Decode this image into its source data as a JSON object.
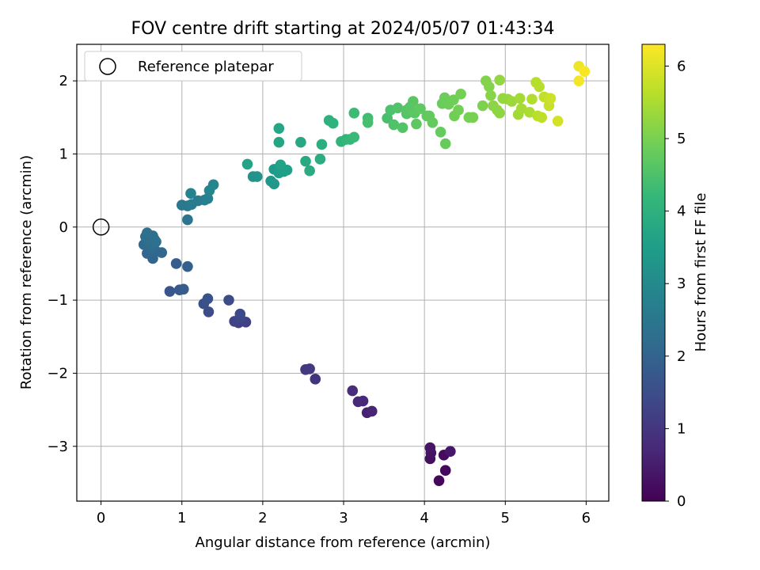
{
  "chart_data": {
    "type": "scatter",
    "title": "FOV centre drift starting at 2024/05/07 01:43:34",
    "xlabel": "Angular distance from reference (arcmin)",
    "ylabel": "Rotation from reference (arcmin)",
    "colorbar_label": "Hours from first FF file",
    "colormap": "viridis",
    "xlim": [
      -0.3,
      6.28
    ],
    "ylim": [
      -3.75,
      2.5
    ],
    "clim": [
      0,
      6.3
    ],
    "x_ticks": [
      "0",
      "1",
      "2",
      "3",
      "4",
      "5",
      "6"
    ],
    "y_ticks": [
      "−3",
      "−2",
      "−1",
      "0",
      "1",
      "2"
    ],
    "colorbar_ticks": [
      "0",
      "1",
      "2",
      "3",
      "4",
      "5",
      "6"
    ],
    "grid": true,
    "legend": {
      "placement": "top-left",
      "entries": [
        "Reference platepar"
      ]
    },
    "reference_point": {
      "x": 0,
      "y": 0,
      "label": "Reference platepar"
    },
    "points": [
      {
        "x": 4.18,
        "y": -3.47,
        "h": 0.1
      },
      {
        "x": 4.26,
        "y": -3.33,
        "h": 0.15
      },
      {
        "x": 4.24,
        "y": -3.12,
        "h": 0.2
      },
      {
        "x": 4.07,
        "y": -3.17,
        "h": 0.25
      },
      {
        "x": 4.08,
        "y": -3.09,
        "h": 0.3
      },
      {
        "x": 4.07,
        "y": -3.02,
        "h": 0.35
      },
      {
        "x": 4.32,
        "y": -3.07,
        "h": 0.4
      },
      {
        "x": 3.29,
        "y": -2.54,
        "h": 0.6
      },
      {
        "x": 3.35,
        "y": -2.52,
        "h": 0.65
      },
      {
        "x": 3.18,
        "y": -2.39,
        "h": 0.7
      },
      {
        "x": 3.24,
        "y": -2.38,
        "h": 0.75
      },
      {
        "x": 3.11,
        "y": -2.24,
        "h": 0.8
      },
      {
        "x": 2.65,
        "y": -2.08,
        "h": 0.95
      },
      {
        "x": 2.53,
        "y": -1.95,
        "h": 1.0
      },
      {
        "x": 2.58,
        "y": -1.94,
        "h": 1.05
      },
      {
        "x": 1.7,
        "y": -1.31,
        "h": 1.2
      },
      {
        "x": 1.79,
        "y": -1.3,
        "h": 1.25
      },
      {
        "x": 1.65,
        "y": -1.29,
        "h": 1.3
      },
      {
        "x": 1.72,
        "y": -1.24,
        "h": 1.35
      },
      {
        "x": 1.72,
        "y": -1.19,
        "h": 1.4
      },
      {
        "x": 1.58,
        "y": -1.0,
        "h": 1.45
      },
      {
        "x": 1.33,
        "y": -1.16,
        "h": 1.5
      },
      {
        "x": 1.27,
        "y": -1.05,
        "h": 1.55
      },
      {
        "x": 1.32,
        "y": -0.98,
        "h": 1.6
      },
      {
        "x": 0.85,
        "y": -0.88,
        "h": 1.7
      },
      {
        "x": 0.97,
        "y": -0.86,
        "h": 1.75
      },
      {
        "x": 1.02,
        "y": -0.85,
        "h": 1.8
      },
      {
        "x": 0.93,
        "y": -0.5,
        "h": 1.85
      },
      {
        "x": 1.07,
        "y": -0.54,
        "h": 1.9
      },
      {
        "x": 0.64,
        "y": -0.43,
        "h": 2.0
      },
      {
        "x": 0.57,
        "y": -0.36,
        "h": 2.05
      },
      {
        "x": 0.75,
        "y": -0.35,
        "h": 2.1
      },
      {
        "x": 0.67,
        "y": -0.32,
        "h": 2.12
      },
      {
        "x": 0.61,
        "y": -0.3,
        "h": 2.15
      },
      {
        "x": 0.53,
        "y": -0.24,
        "h": 2.18
      },
      {
        "x": 0.63,
        "y": -0.26,
        "h": 2.2
      },
      {
        "x": 0.66,
        "y": -0.17,
        "h": 2.22
      },
      {
        "x": 0.59,
        "y": -0.18,
        "h": 2.25
      },
      {
        "x": 0.55,
        "y": -0.13,
        "h": 2.28
      },
      {
        "x": 0.64,
        "y": -0.12,
        "h": 2.3
      },
      {
        "x": 0.57,
        "y": -0.08,
        "h": 2.32
      },
      {
        "x": 0.68,
        "y": -0.2,
        "h": 2.34
      },
      {
        "x": 1.07,
        "y": 0.1,
        "h": 2.45
      },
      {
        "x": 1.0,
        "y": 0.3,
        "h": 2.5
      },
      {
        "x": 1.07,
        "y": 0.29,
        "h": 2.55
      },
      {
        "x": 1.12,
        "y": 0.31,
        "h": 2.6
      },
      {
        "x": 1.2,
        "y": 0.36,
        "h": 2.65
      },
      {
        "x": 1.28,
        "y": 0.37,
        "h": 2.7
      },
      {
        "x": 1.32,
        "y": 0.39,
        "h": 2.75
      },
      {
        "x": 1.11,
        "y": 0.46,
        "h": 2.8
      },
      {
        "x": 1.34,
        "y": 0.5,
        "h": 2.85
      },
      {
        "x": 1.39,
        "y": 0.58,
        "h": 2.9
      },
      {
        "x": 1.88,
        "y": 0.69,
        "h": 3.2
      },
      {
        "x": 1.93,
        "y": 0.69,
        "h": 3.25
      },
      {
        "x": 2.1,
        "y": 0.63,
        "h": 3.3
      },
      {
        "x": 2.14,
        "y": 0.59,
        "h": 3.35
      },
      {
        "x": 2.14,
        "y": 0.79,
        "h": 3.4
      },
      {
        "x": 2.2,
        "y": 0.74,
        "h": 3.45
      },
      {
        "x": 2.26,
        "y": 0.76,
        "h": 3.5
      },
      {
        "x": 2.3,
        "y": 0.78,
        "h": 3.55
      },
      {
        "x": 2.22,
        "y": 0.85,
        "h": 3.6
      },
      {
        "x": 1.81,
        "y": 0.86,
        "h": 3.65
      },
      {
        "x": 2.2,
        "y": 1.16,
        "h": 3.7
      },
      {
        "x": 2.2,
        "y": 1.35,
        "h": 3.72
      },
      {
        "x": 2.47,
        "y": 1.16,
        "h": 3.75
      },
      {
        "x": 2.53,
        "y": 0.9,
        "h": 3.8
      },
      {
        "x": 2.58,
        "y": 0.77,
        "h": 3.85
      },
      {
        "x": 2.71,
        "y": 0.93,
        "h": 3.9
      },
      {
        "x": 2.73,
        "y": 1.13,
        "h": 3.95
      },
      {
        "x": 2.82,
        "y": 1.46,
        "h": 4.0
      },
      {
        "x": 2.87,
        "y": 1.42,
        "h": 4.05
      },
      {
        "x": 2.97,
        "y": 1.17,
        "h": 4.1
      },
      {
        "x": 3.03,
        "y": 1.2,
        "h": 4.15
      },
      {
        "x": 3.08,
        "y": 1.2,
        "h": 4.2
      },
      {
        "x": 3.13,
        "y": 1.23,
        "h": 4.25
      },
      {
        "x": 3.13,
        "y": 1.56,
        "h": 4.3
      },
      {
        "x": 3.3,
        "y": 1.49,
        "h": 4.35
      },
      {
        "x": 3.3,
        "y": 1.43,
        "h": 4.4
      },
      {
        "x": 3.54,
        "y": 1.49,
        "h": 4.45
      },
      {
        "x": 3.58,
        "y": 1.6,
        "h": 4.5
      },
      {
        "x": 3.62,
        "y": 1.4,
        "h": 4.52
      },
      {
        "x": 3.67,
        "y": 1.63,
        "h": 4.55
      },
      {
        "x": 3.73,
        "y": 1.36,
        "h": 4.57
      },
      {
        "x": 3.78,
        "y": 1.55,
        "h": 4.6
      },
      {
        "x": 3.78,
        "y": 1.6,
        "h": 4.62
      },
      {
        "x": 3.82,
        "y": 1.64,
        "h": 4.64
      },
      {
        "x": 3.86,
        "y": 1.72,
        "h": 4.66
      },
      {
        "x": 3.88,
        "y": 1.56,
        "h": 4.68
      },
      {
        "x": 3.9,
        "y": 1.41,
        "h": 4.7
      },
      {
        "x": 3.95,
        "y": 1.62,
        "h": 4.72
      },
      {
        "x": 4.03,
        "y": 1.52,
        "h": 4.74
      },
      {
        "x": 4.06,
        "y": 1.52,
        "h": 4.76
      },
      {
        "x": 4.1,
        "y": 1.43,
        "h": 4.78
      },
      {
        "x": 4.2,
        "y": 1.3,
        "h": 4.8
      },
      {
        "x": 4.26,
        "y": 1.14,
        "h": 4.82
      },
      {
        "x": 4.22,
        "y": 1.69,
        "h": 4.84
      },
      {
        "x": 4.25,
        "y": 1.77,
        "h": 4.86
      },
      {
        "x": 4.3,
        "y": 1.68,
        "h": 4.88
      },
      {
        "x": 4.36,
        "y": 1.74,
        "h": 4.9
      },
      {
        "x": 4.37,
        "y": 1.52,
        "h": 4.92
      },
      {
        "x": 4.42,
        "y": 1.6,
        "h": 4.94
      },
      {
        "x": 4.45,
        "y": 1.82,
        "h": 4.96
      },
      {
        "x": 4.55,
        "y": 1.5,
        "h": 4.98
      },
      {
        "x": 4.6,
        "y": 1.5,
        "h": 5.0
      },
      {
        "x": 4.72,
        "y": 1.66,
        "h": 5.05
      },
      {
        "x": 4.76,
        "y": 2.0,
        "h": 5.1
      },
      {
        "x": 4.8,
        "y": 1.92,
        "h": 5.12
      },
      {
        "x": 4.82,
        "y": 1.8,
        "h": 5.15
      },
      {
        "x": 4.85,
        "y": 1.66,
        "h": 5.18
      },
      {
        "x": 4.9,
        "y": 1.6,
        "h": 5.2
      },
      {
        "x": 4.93,
        "y": 1.56,
        "h": 5.22
      },
      {
        "x": 4.93,
        "y": 2.01,
        "h": 5.25
      },
      {
        "x": 4.97,
        "y": 1.76,
        "h": 5.28
      },
      {
        "x": 5.03,
        "y": 1.75,
        "h": 5.3
      },
      {
        "x": 5.08,
        "y": 1.72,
        "h": 5.35
      },
      {
        "x": 5.16,
        "y": 1.54,
        "h": 5.4
      },
      {
        "x": 5.18,
        "y": 1.76,
        "h": 5.42
      },
      {
        "x": 5.2,
        "y": 1.62,
        "h": 5.45
      },
      {
        "x": 5.3,
        "y": 1.57,
        "h": 5.5
      },
      {
        "x": 5.33,
        "y": 1.75,
        "h": 5.55
      },
      {
        "x": 5.38,
        "y": 1.98,
        "h": 5.6
      },
      {
        "x": 5.42,
        "y": 1.92,
        "h": 5.62
      },
      {
        "x": 5.4,
        "y": 1.52,
        "h": 5.65
      },
      {
        "x": 5.45,
        "y": 1.5,
        "h": 5.68
      },
      {
        "x": 5.48,
        "y": 1.78,
        "h": 5.72
      },
      {
        "x": 5.53,
        "y": 1.76,
        "h": 5.75
      },
      {
        "x": 5.54,
        "y": 1.66,
        "h": 5.78
      },
      {
        "x": 5.56,
        "y": 1.76,
        "h": 5.82
      },
      {
        "x": 5.65,
        "y": 1.45,
        "h": 5.88
      },
      {
        "x": 5.91,
        "y": 2.2,
        "h": 6.15
      },
      {
        "x": 5.91,
        "y": 2.0,
        "h": 6.2
      },
      {
        "x": 5.98,
        "y": 2.13,
        "h": 6.25
      }
    ]
  }
}
